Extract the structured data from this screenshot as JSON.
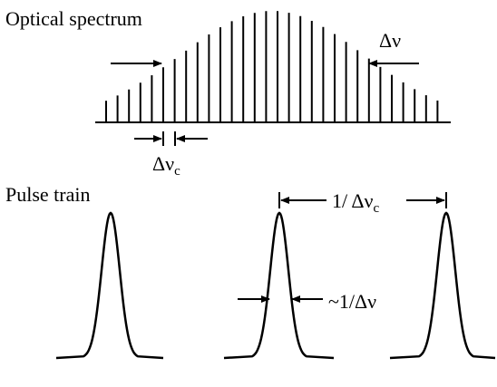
{
  "spectrum": {
    "title": "Optical spectrum",
    "bandwidth_label": "Δν",
    "spacing_label": {
      "text": "Δν",
      "subscript": "c"
    }
  },
  "pulses": {
    "title": "Pulse train",
    "period_label": {
      "text": "1/ Δν",
      "subscript": "c"
    },
    "width_label": "~1/Δν"
  }
}
